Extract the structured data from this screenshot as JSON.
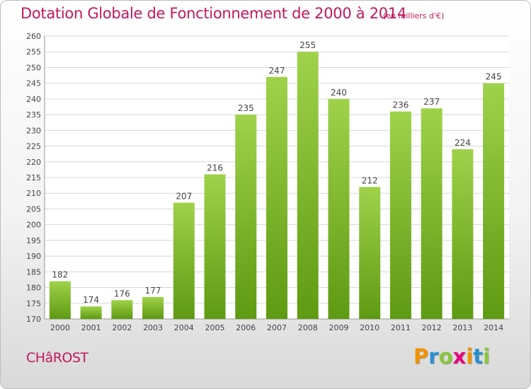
{
  "chart_data": {
    "type": "bar",
    "title": "Dotation Globale de Fonctionnement de 2000 à 2014",
    "subtitle": "(en milliers d'€)",
    "categories": [
      "2000",
      "2001",
      "2002",
      "2003",
      "2004",
      "2005",
      "2006",
      "2007",
      "2008",
      "2009",
      "2010",
      "2011",
      "2012",
      "2013",
      "2014"
    ],
    "values": [
      182,
      174,
      176,
      177,
      207,
      216,
      235,
      247,
      255,
      240,
      212,
      236,
      237,
      224,
      245
    ],
    "ylim": [
      170,
      260
    ],
    "ytick_step": 5,
    "grid": true,
    "xlabel": "",
    "ylabel": "",
    "bar_color": "#7cb82f"
  },
  "commune": "CHâROST",
  "logo": {
    "letters": [
      "P",
      "r",
      "o",
      "x",
      "i",
      "t",
      "i"
    ],
    "colors": [
      "#f39200",
      "#2a8fd0",
      "#8cc63f",
      "#e6007e",
      "#f39200",
      "#2a8fd0",
      "#8cc63f"
    ]
  }
}
